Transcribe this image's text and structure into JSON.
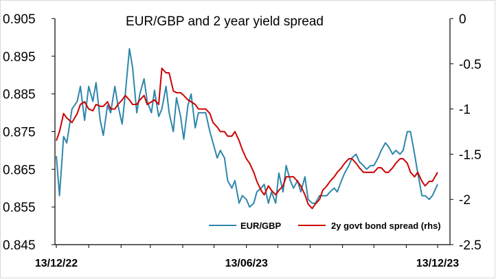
{
  "chart_data": {
    "type": "line",
    "title": "EUR/GBP and 2 year yield spread",
    "xlabel": "",
    "ylabel_left": "",
    "ylabel_right": "",
    "x_start": "2022-12-13",
    "x_end": "2023-12-13",
    "x_ticks": [
      {
        "date": "2022-12-13",
        "label": "13/12/22"
      },
      {
        "date": "2023-06-13",
        "label": "13/06/23"
      },
      {
        "date": "2023-12-13",
        "label": "13/12/23"
      }
    ],
    "ylim_left": [
      0.845,
      0.905
    ],
    "ylim_right": [
      -2.5,
      0
    ],
    "yticks_left": [
      "0.905",
      "0.895",
      "0.885",
      "0.875",
      "0.865",
      "0.855",
      "0.845"
    ],
    "yticks_right": [
      "0",
      "-0.5",
      "-1",
      "-1.5",
      "-2",
      "-2.5"
    ],
    "legend_position": "bottom-right",
    "grid": false,
    "series": [
      {
        "name": "EUR/GBP",
        "axis": "left",
        "color": "#2e86ab",
        "points": [
          [
            "2022-12-13",
            0.8685
          ],
          [
            "2022-12-16",
            0.858
          ],
          [
            "2022-12-20",
            0.8737
          ],
          [
            "2022-12-23",
            0.872
          ],
          [
            "2022-12-28",
            0.881
          ],
          [
            "2023-01-02",
            0.883
          ],
          [
            "2023-01-05",
            0.887
          ],
          [
            "2023-01-09",
            0.878
          ],
          [
            "2023-01-13",
            0.887
          ],
          [
            "2023-01-17",
            0.883
          ],
          [
            "2023-01-20",
            0.888
          ],
          [
            "2023-01-24",
            0.878
          ],
          [
            "2023-01-27",
            0.874
          ],
          [
            "2023-01-31",
            0.882
          ],
          [
            "2023-02-03",
            0.88
          ],
          [
            "2023-02-07",
            0.887
          ],
          [
            "2023-02-10",
            0.882
          ],
          [
            "2023-02-14",
            0.877
          ],
          [
            "2023-02-17",
            0.885
          ],
          [
            "2023-02-21",
            0.897
          ],
          [
            "2023-02-24",
            0.892
          ],
          [
            "2023-02-28",
            0.88
          ],
          [
            "2023-03-03",
            0.885
          ],
          [
            "2023-03-07",
            0.889
          ],
          [
            "2023-03-10",
            0.883
          ],
          [
            "2023-03-14",
            0.88
          ],
          [
            "2023-03-17",
            0.886
          ],
          [
            "2023-03-21",
            0.879
          ],
          [
            "2023-03-24",
            0.881
          ],
          [
            "2023-03-28",
            0.887
          ],
          [
            "2023-03-31",
            0.88
          ],
          [
            "2023-04-04",
            0.875
          ],
          [
            "2023-04-07",
            0.884
          ],
          [
            "2023-04-11",
            0.879
          ],
          [
            "2023-04-14",
            0.873
          ],
          [
            "2023-04-18",
            0.882
          ],
          [
            "2023-04-21",
            0.885
          ],
          [
            "2023-04-25",
            0.876
          ],
          [
            "2023-04-28",
            0.88
          ],
          [
            "2023-05-02",
            0.88
          ],
          [
            "2023-05-05",
            0.88
          ],
          [
            "2023-05-09",
            0.875
          ],
          [
            "2023-05-12",
            0.872
          ],
          [
            "2023-05-16",
            0.868
          ],
          [
            "2023-05-19",
            0.87
          ],
          [
            "2023-05-23",
            0.868
          ],
          [
            "2023-05-26",
            0.862
          ],
          [
            "2023-05-30",
            0.86
          ],
          [
            "2023-06-02",
            0.862
          ],
          [
            "2023-06-06",
            0.856
          ],
          [
            "2023-06-09",
            0.858
          ],
          [
            "2023-06-13",
            0.857
          ],
          [
            "2023-06-16",
            0.855
          ],
          [
            "2023-06-20",
            0.856
          ],
          [
            "2023-06-23",
            0.859
          ],
          [
            "2023-06-27",
            0.86
          ],
          [
            "2023-06-30",
            0.861
          ],
          [
            "2023-07-04",
            0.856
          ],
          [
            "2023-07-07",
            0.859
          ],
          [
            "2023-07-11",
            0.856
          ],
          [
            "2023-07-14",
            0.864
          ],
          [
            "2023-07-18",
            0.859
          ],
          [
            "2023-07-21",
            0.866
          ],
          [
            "2023-07-25",
            0.862
          ],
          [
            "2023-07-28",
            0.86
          ],
          [
            "2023-08-01",
            0.862
          ],
          [
            "2023-08-04",
            0.859
          ],
          [
            "2023-08-08",
            0.863
          ],
          [
            "2023-08-11",
            0.857
          ],
          [
            "2023-08-15",
            0.856
          ],
          [
            "2023-08-18",
            0.856
          ],
          [
            "2023-08-22",
            0.858
          ],
          [
            "2023-08-25",
            0.858
          ],
          [
            "2023-08-29",
            0.858
          ],
          [
            "2023-09-01",
            0.859
          ],
          [
            "2023-09-05",
            0.86
          ],
          [
            "2023-09-08",
            0.859
          ],
          [
            "2023-09-12",
            0.862
          ],
          [
            "2023-09-15",
            0.864
          ],
          [
            "2023-09-19",
            0.866
          ],
          [
            "2023-09-22",
            0.868
          ],
          [
            "2023-09-26",
            0.869
          ],
          [
            "2023-09-29",
            0.867
          ],
          [
            "2023-10-03",
            0.866
          ],
          [
            "2023-10-06",
            0.865
          ],
          [
            "2023-10-10",
            0.866
          ],
          [
            "2023-10-13",
            0.866
          ],
          [
            "2023-10-17",
            0.868
          ],
          [
            "2023-10-20",
            0.87
          ],
          [
            "2023-10-24",
            0.872
          ],
          [
            "2023-10-27",
            0.871
          ],
          [
            "2023-10-31",
            0.869
          ],
          [
            "2023-11-03",
            0.87
          ],
          [
            "2023-11-07",
            0.869
          ],
          [
            "2023-11-10",
            0.87
          ],
          [
            "2023-11-14",
            0.875
          ],
          [
            "2023-11-17",
            0.875
          ],
          [
            "2023-11-21",
            0.869
          ],
          [
            "2023-11-24",
            0.864
          ],
          [
            "2023-11-28",
            0.858
          ],
          [
            "2023-12-01",
            0.858
          ],
          [
            "2023-12-05",
            0.857
          ],
          [
            "2023-12-08",
            0.858
          ],
          [
            "2023-12-13",
            0.861
          ]
        ]
      },
      {
        "name": "2y govt bond spread (rhs)",
        "axis": "right",
        "color": "#cc0000",
        "points": [
          [
            "2022-12-13",
            -1.35
          ],
          [
            "2022-12-16",
            -1.25
          ],
          [
            "2022-12-20",
            -1.05
          ],
          [
            "2022-12-23",
            -1.1
          ],
          [
            "2022-12-28",
            -1.15
          ],
          [
            "2023-01-02",
            -1.05
          ],
          [
            "2023-01-05",
            -0.95
          ],
          [
            "2023-01-09",
            -0.92
          ],
          [
            "2023-01-13",
            -1.0
          ],
          [
            "2023-01-17",
            -1.02
          ],
          [
            "2023-01-20",
            -0.95
          ],
          [
            "2023-01-24",
            -0.97
          ],
          [
            "2023-01-27",
            -0.97
          ],
          [
            "2023-01-31",
            -0.92
          ],
          [
            "2023-02-03",
            -1.0
          ],
          [
            "2023-02-07",
            -1.0
          ],
          [
            "2023-02-10",
            -0.95
          ],
          [
            "2023-02-14",
            -0.9
          ],
          [
            "2023-02-17",
            -0.85
          ],
          [
            "2023-02-21",
            -0.9
          ],
          [
            "2023-02-24",
            -0.95
          ],
          [
            "2023-02-28",
            -0.95
          ],
          [
            "2023-03-03",
            -0.9
          ],
          [
            "2023-03-07",
            -0.85
          ],
          [
            "2023-03-10",
            -0.95
          ],
          [
            "2023-03-14",
            -0.92
          ],
          [
            "2023-03-17",
            -0.9
          ],
          [
            "2023-03-21",
            -0.95
          ],
          [
            "2023-03-24",
            -0.55
          ],
          [
            "2023-03-28",
            -0.6
          ],
          [
            "2023-03-31",
            -0.6
          ],
          [
            "2023-04-04",
            -0.8
          ],
          [
            "2023-04-07",
            -0.82
          ],
          [
            "2023-04-11",
            -0.82
          ],
          [
            "2023-04-14",
            -0.85
          ],
          [
            "2023-04-18",
            -0.9
          ],
          [
            "2023-04-21",
            -0.92
          ],
          [
            "2023-04-25",
            -0.95
          ],
          [
            "2023-04-28",
            -1.0
          ],
          [
            "2023-05-02",
            -1.0
          ],
          [
            "2023-05-05",
            -1.0
          ],
          [
            "2023-05-09",
            -1.05
          ],
          [
            "2023-05-12",
            -1.15
          ],
          [
            "2023-05-16",
            -1.2
          ],
          [
            "2023-05-19",
            -1.25
          ],
          [
            "2023-05-23",
            -1.25
          ],
          [
            "2023-05-26",
            -1.3
          ],
          [
            "2023-05-30",
            -1.3
          ],
          [
            "2023-06-02",
            -1.25
          ],
          [
            "2023-06-06",
            -1.35
          ],
          [
            "2023-06-09",
            -1.45
          ],
          [
            "2023-06-13",
            -1.55
          ],
          [
            "2023-06-16",
            -1.6
          ],
          [
            "2023-06-20",
            -1.7
          ],
          [
            "2023-06-23",
            -1.8
          ],
          [
            "2023-06-27",
            -1.9
          ],
          [
            "2023-06-30",
            -1.95
          ],
          [
            "2023-07-04",
            -1.85
          ],
          [
            "2023-07-07",
            -1.9
          ],
          [
            "2023-07-11",
            -1.95
          ],
          [
            "2023-07-14",
            -1.9
          ],
          [
            "2023-07-18",
            -1.85
          ],
          [
            "2023-07-21",
            -1.75
          ],
          [
            "2023-07-25",
            -1.75
          ],
          [
            "2023-07-28",
            -1.75
          ],
          [
            "2023-08-01",
            -1.8
          ],
          [
            "2023-08-04",
            -1.85
          ],
          [
            "2023-08-08",
            -1.95
          ],
          [
            "2023-08-11",
            -2.05
          ],
          [
            "2023-08-15",
            -2.1
          ],
          [
            "2023-08-18",
            -2.05
          ],
          [
            "2023-08-22",
            -2.0
          ],
          [
            "2023-08-25",
            -1.9
          ],
          [
            "2023-08-29",
            -1.85
          ],
          [
            "2023-09-01",
            -1.8
          ],
          [
            "2023-09-05",
            -1.75
          ],
          [
            "2023-09-08",
            -1.7
          ],
          [
            "2023-09-12",
            -1.65
          ],
          [
            "2023-09-15",
            -1.6
          ],
          [
            "2023-09-19",
            -1.55
          ],
          [
            "2023-09-22",
            -1.55
          ],
          [
            "2023-09-26",
            -1.6
          ],
          [
            "2023-09-29",
            -1.65
          ],
          [
            "2023-10-03",
            -1.7
          ],
          [
            "2023-10-06",
            -1.7
          ],
          [
            "2023-10-10",
            -1.7
          ],
          [
            "2023-10-13",
            -1.7
          ],
          [
            "2023-10-17",
            -1.65
          ],
          [
            "2023-10-20",
            -1.65
          ],
          [
            "2023-10-24",
            -1.7
          ],
          [
            "2023-10-27",
            -1.7
          ],
          [
            "2023-10-31",
            -1.65
          ],
          [
            "2023-11-03",
            -1.6
          ],
          [
            "2023-11-07",
            -1.55
          ],
          [
            "2023-11-10",
            -1.55
          ],
          [
            "2023-11-14",
            -1.6
          ],
          [
            "2023-11-17",
            -1.7
          ],
          [
            "2023-11-21",
            -1.75
          ],
          [
            "2023-11-24",
            -1.7
          ],
          [
            "2023-11-28",
            -1.8
          ],
          [
            "2023-12-01",
            -1.85
          ],
          [
            "2023-12-05",
            -1.8
          ],
          [
            "2023-12-08",
            -1.8
          ],
          [
            "2023-12-13",
            -1.7
          ]
        ]
      }
    ]
  }
}
